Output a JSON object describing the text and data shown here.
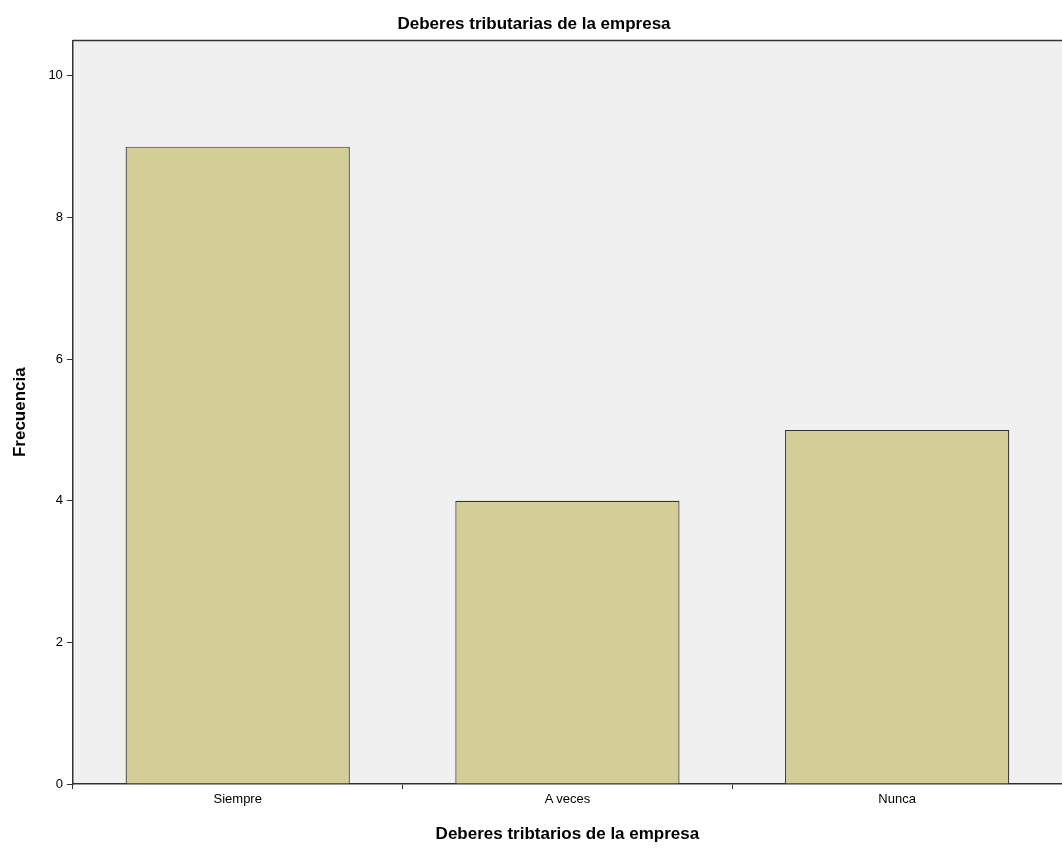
{
  "chart_data": {
    "type": "bar",
    "title": "Deberes tributarias de la empresa",
    "xlabel": "Deberes tribtarios de la empresa",
    "ylabel": "Frecuencia",
    "categories": [
      "Siempre",
      "A veces",
      "Nunca"
    ],
    "values": [
      9,
      4,
      5
    ],
    "color": "#d3ce97",
    "ylim": [
      0,
      10.5
    ],
    "yticks": [
      0,
      2,
      4,
      6,
      8,
      10
    ],
    "grid": false,
    "legend": false
  }
}
